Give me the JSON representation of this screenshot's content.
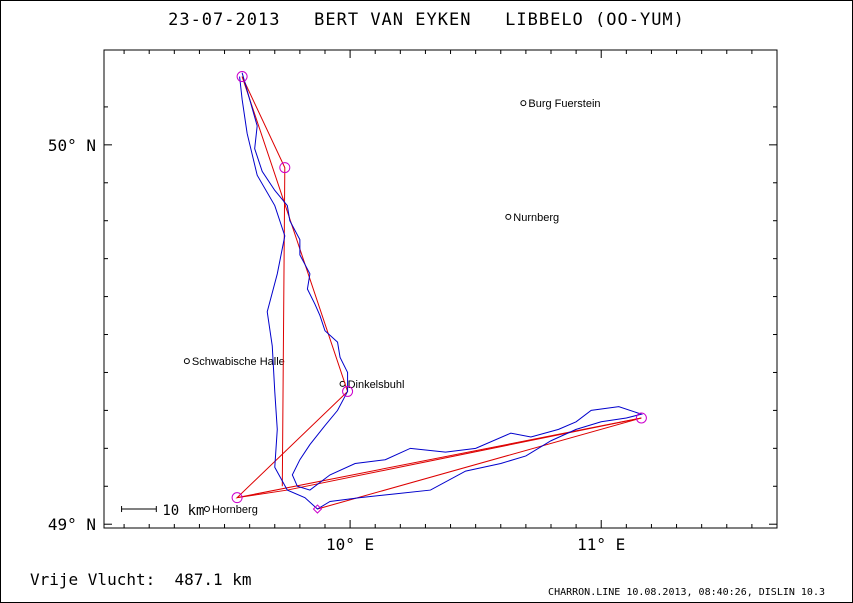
{
  "title": "23-07-2013   BERT VAN EYKEN   LIBBELO (OO-YUM)",
  "footer": {
    "distance_label": "Vrije Vlucht:",
    "distance_value": "487.1 km",
    "software": "CHARRON.LINE 10.08.2013, 08:40:26, DISLIN 10.3"
  },
  "map": {
    "lon_range": [
      9.02,
      11.7
    ],
    "lat_range": [
      48.99,
      50.25
    ],
    "lat_ticks": [
      {
        "value": 49,
        "label": "49° N"
      },
      {
        "value": 50,
        "label": "50° N"
      }
    ],
    "lon_ticks": [
      {
        "value": 10,
        "label": "10° E"
      },
      {
        "value": 11,
        "label": "11° E"
      }
    ],
    "scale_bar": {
      "label": "10 km",
      "km": 10
    },
    "cities": [
      {
        "name": "Burg Fuerstein",
        "lon": 10.69,
        "lat": 50.11
      },
      {
        "name": "Nurnberg",
        "lon": 10.63,
        "lat": 49.81
      },
      {
        "name": "Schwabische Halle",
        "lon": 9.35,
        "lat": 49.43
      },
      {
        "name": "Dinkelsbuhl",
        "lon": 9.97,
        "lat": 49.37
      },
      {
        "name": "Hornberg",
        "lon": 9.43,
        "lat": 49.04
      }
    ],
    "turnpoints": [
      {
        "lon": 9.57,
        "lat": 50.18
      },
      {
        "lon": 9.74,
        "lat": 49.94
      },
      {
        "lon": 9.99,
        "lat": 49.35
      },
      {
        "lon": 9.55,
        "lat": 49.07
      },
      {
        "lon": 11.16,
        "lat": 49.28
      }
    ],
    "start": {
      "lon": 9.87,
      "lat": 49.04
    },
    "colors": {
      "track": "#0000cc",
      "task": "#dd0000",
      "turnpoint": "#cc00cc",
      "axes": "#000000"
    },
    "track": [
      [
        9.57,
        50.19
      ],
      [
        9.6,
        50.12
      ],
      [
        9.63,
        50.05
      ],
      [
        9.62,
        49.99
      ],
      [
        9.65,
        49.93
      ],
      [
        9.7,
        49.88
      ],
      [
        9.75,
        49.84
      ],
      [
        9.76,
        49.8
      ],
      [
        9.8,
        49.75
      ],
      [
        9.8,
        49.71
      ],
      [
        9.84,
        49.66
      ],
      [
        9.83,
        49.62
      ],
      [
        9.86,
        49.58
      ],
      [
        9.88,
        49.55
      ],
      [
        9.9,
        49.51
      ],
      [
        9.95,
        49.48
      ],
      [
        9.96,
        49.44
      ],
      [
        9.99,
        49.4
      ],
      [
        9.99,
        49.35
      ],
      [
        9.95,
        49.3
      ],
      [
        9.9,
        49.26
      ],
      [
        9.84,
        49.21
      ],
      [
        9.8,
        49.17
      ],
      [
        9.77,
        49.13
      ],
      [
        9.79,
        49.1
      ],
      [
        9.84,
        49.09
      ],
      [
        9.92,
        49.13
      ],
      [
        10.02,
        49.16
      ],
      [
        10.14,
        49.17
      ],
      [
        10.24,
        49.2
      ],
      [
        10.38,
        49.19
      ],
      [
        10.5,
        49.2
      ],
      [
        10.64,
        49.24
      ],
      [
        10.72,
        49.23
      ],
      [
        10.83,
        49.25
      ],
      [
        10.9,
        49.27
      ],
      [
        10.96,
        49.3
      ],
      [
        11.07,
        49.31
      ],
      [
        11.16,
        49.29
      ],
      [
        11.1,
        49.28
      ],
      [
        11.0,
        49.27
      ],
      [
        10.9,
        49.25
      ],
      [
        10.8,
        49.22
      ],
      [
        10.7,
        49.18
      ],
      [
        10.6,
        49.16
      ],
      [
        10.46,
        49.14
      ],
      [
        10.32,
        49.09
      ],
      [
        10.18,
        49.08
      ],
      [
        10.04,
        49.07
      ],
      [
        9.92,
        49.06
      ],
      [
        9.87,
        49.04
      ],
      [
        9.82,
        49.07
      ],
      [
        9.75,
        49.09
      ],
      [
        9.7,
        49.15
      ],
      [
        9.71,
        49.25
      ],
      [
        9.7,
        49.35
      ],
      [
        9.69,
        49.47
      ],
      [
        9.67,
        49.56
      ],
      [
        9.71,
        49.66
      ],
      [
        9.74,
        49.76
      ],
      [
        9.7,
        49.84
      ],
      [
        9.63,
        49.92
      ],
      [
        9.59,
        50.03
      ],
      [
        9.57,
        50.12
      ],
      [
        9.56,
        50.18
      ]
    ]
  }
}
